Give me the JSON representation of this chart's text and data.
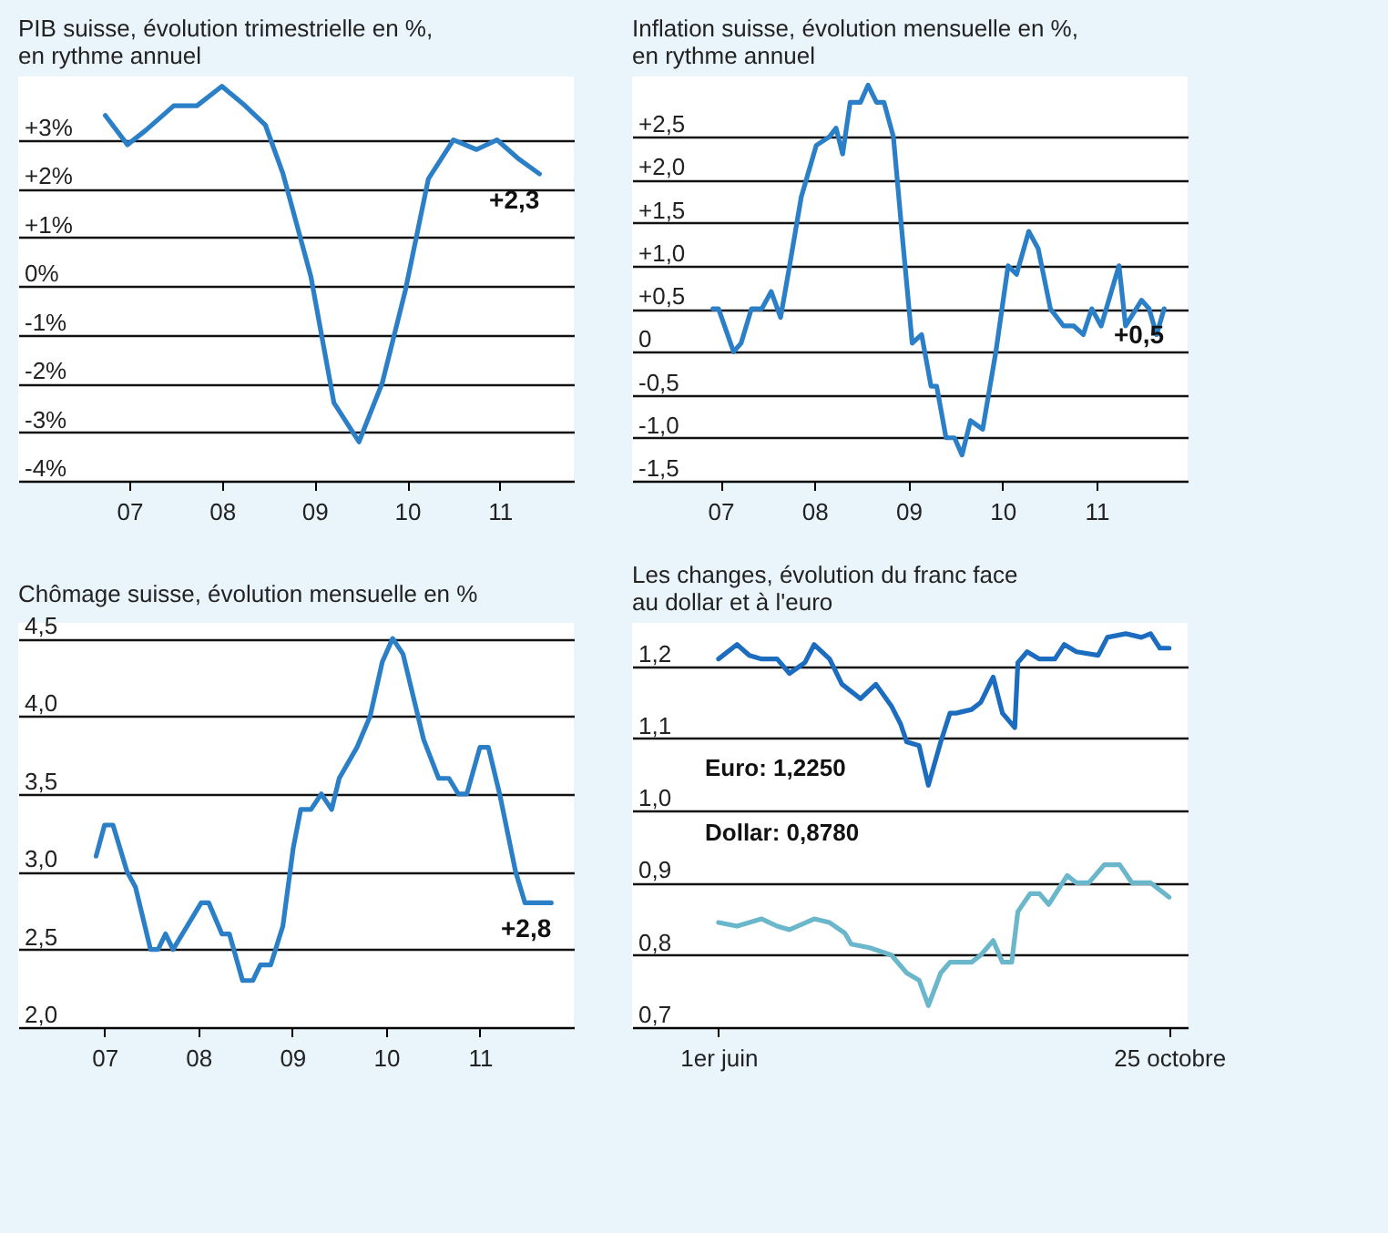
{
  "chart_data": [
    {
      "type": "line",
      "title": "PIB suisse, évolution trimestrielle en %,\nen rythme annuel",
      "grid": "y",
      "x": [
        2006.74,
        2006.98,
        2007.18,
        2007.48,
        2007.73,
        2008.0,
        2008.25,
        2008.47,
        2008.66,
        2008.96,
        2009.21,
        2009.48,
        2009.73,
        2009.98,
        2010.23,
        2010.5,
        2010.75,
        2010.97,
        2011.21,
        2011.43
      ],
      "series": [
        {
          "color": "#2a7fc6",
          "values": [
            3.5,
            2.9,
            3.2,
            3.7,
            3.7,
            4.1,
            3.7,
            3.3,
            2.3,
            0.2,
            -2.4,
            -3.2,
            -2.0,
            -0.1,
            2.2,
            3.0,
            2.8,
            3.0,
            2.6,
            2.3
          ]
        }
      ],
      "xlim": [
        2005.8,
        2011.8
      ],
      "xticks": [
        {
          "value": 2007,
          "label": "07"
        },
        {
          "value": 2008,
          "label": "08"
        },
        {
          "value": 2009,
          "label": "09"
        },
        {
          "value": 2010,
          "label": "10"
        },
        {
          "value": 2011,
          "label": "11"
        }
      ],
      "ylim": [
        -4,
        4.3
      ],
      "yticks": [
        {
          "value": 3,
          "label": "+3%"
        },
        {
          "value": 2,
          "label": "+2%"
        },
        {
          "value": 1,
          "label": "+1%"
        },
        {
          "value": 0,
          "label": "0%"
        },
        {
          "value": -1,
          "label": "-1%"
        },
        {
          "value": -2,
          "label": "-2%"
        },
        {
          "value": -3,
          "label": "-3%"
        },
        {
          "value": -4,
          "label": "-4%"
        }
      ],
      "annotations": [
        {
          "text": "+2,3",
          "x": 2011.43,
          "y": 2.3
        }
      ]
    },
    {
      "type": "line",
      "title": "Inflation suisse, évolution mensuelle en %,\nen rythme annuel",
      "grid": "y",
      "x": [
        2006.92,
        2006.98,
        2007.14,
        2007.22,
        2007.33,
        2007.44,
        2007.54,
        2007.64,
        2007.72,
        2007.86,
        2008.02,
        2008.16,
        2008.23,
        2008.3,
        2008.38,
        2008.49,
        2008.57,
        2008.66,
        2008.74,
        2008.84,
        2008.93,
        2009.04,
        2009.14,
        2009.24,
        2009.3,
        2009.4,
        2009.49,
        2009.57,
        2009.66,
        2009.79,
        2009.93,
        2010.06,
        2010.15,
        2010.28,
        2010.38,
        2010.51,
        2010.65,
        2010.76,
        2010.86,
        2010.95,
        2011.05,
        2011.24,
        2011.31,
        2011.48,
        2011.56,
        2011.64,
        2011.72
      ],
      "series": [
        {
          "color": "#2a7fc6",
          "values": [
            0.5,
            0.5,
            0.0,
            0.1,
            0.5,
            0.5,
            0.7,
            0.4,
            0.9,
            1.8,
            2.4,
            2.5,
            2.6,
            2.3,
            2.9,
            2.9,
            3.1,
            2.9,
            2.9,
            2.5,
            1.4,
            0.1,
            0.2,
            -0.4,
            -0.4,
            -1.0,
            -1.0,
            -1.2,
            -0.8,
            -0.9,
            0.0,
            1.0,
            0.9,
            1.4,
            1.2,
            0.5,
            0.3,
            0.3,
            0.2,
            0.5,
            0.3,
            1.0,
            0.3,
            0.6,
            0.5,
            0.2,
            0.5
          ]
        }
      ],
      "xlim": [
        2006.06,
        2011.97
      ],
      "xticks": [
        {
          "value": 2007,
          "label": "07"
        },
        {
          "value": 2008,
          "label": "08"
        },
        {
          "value": 2009,
          "label": "09"
        },
        {
          "value": 2010,
          "label": "10"
        },
        {
          "value": 2011,
          "label": "11"
        }
      ],
      "ylim": [
        -1.5,
        3.2
      ],
      "yticks": [
        {
          "value": 2.5,
          "label": "+2,5"
        },
        {
          "value": 2,
          "label": "+2,0"
        },
        {
          "value": 1.5,
          "label": "+1,5"
        },
        {
          "value": 1,
          "label": "+1,0"
        },
        {
          "value": 0.5,
          "label": "+0,5"
        },
        {
          "value": 0,
          "label": "0"
        },
        {
          "value": -0.5,
          "label": "-0,5"
        },
        {
          "value": -1,
          "label": "-1,0"
        },
        {
          "value": -1.5,
          "label": "-1,5"
        }
      ],
      "annotations": [
        {
          "text": "+0,5",
          "x": 2011.72,
          "y": 0.5
        }
      ]
    },
    {
      "type": "line",
      "title": "Chômage suisse, évolution mensuelle en %",
      "grid": "y",
      "x": [
        2006.91,
        2007.0,
        2007.09,
        2007.24,
        2007.33,
        2007.49,
        2007.57,
        2007.65,
        2007.73,
        2008.03,
        2008.11,
        2008.25,
        2008.33,
        2008.47,
        2008.58,
        2008.66,
        2008.77,
        2008.9,
        2009.01,
        2009.09,
        2009.2,
        2009.31,
        2009.42,
        2009.5,
        2009.69,
        2009.83,
        2009.96,
        2010.07,
        2010.18,
        2010.4,
        2010.56,
        2010.67,
        2010.77,
        2010.86,
        2011.0,
        2011.09,
        2011.21,
        2011.38,
        2011.48,
        2011.76
      ],
      "series": [
        {
          "color": "#2a7fc6",
          "values": [
            3.1,
            3.3,
            3.3,
            3.0,
            2.9,
            2.5,
            2.5,
            2.6,
            2.5,
            2.8,
            2.8,
            2.6,
            2.6,
            2.3,
            2.3,
            2.4,
            2.4,
            2.65,
            3.15,
            3.4,
            3.4,
            3.5,
            3.4,
            3.6,
            3.8,
            4.0,
            4.35,
            4.5,
            4.4,
            3.85,
            3.6,
            3.6,
            3.5,
            3.5,
            3.8,
            3.8,
            3.5,
            3.0,
            2.8,
            2.8
          ]
        }
      ],
      "xlim": [
        2006.08,
        2012.0
      ],
      "xticks": [
        {
          "value": 2007,
          "label": "07"
        },
        {
          "value": 2008,
          "label": "08"
        },
        {
          "value": 2009,
          "label": "09"
        },
        {
          "value": 2010,
          "label": "10"
        },
        {
          "value": 2011,
          "label": "11"
        }
      ],
      "ylim": [
        2.0,
        4.6
      ],
      "yticks": [
        {
          "value": 4.5,
          "label": "4,5"
        },
        {
          "value": 4,
          "label": "4,0"
        },
        {
          "value": 3.5,
          "label": "3,5"
        },
        {
          "value": 3,
          "label": "3,0"
        },
        {
          "value": 2.5,
          "label": "2,5"
        },
        {
          "value": 2,
          "label": "2,0"
        }
      ],
      "annotations": [
        {
          "text": "+2,8",
          "x": 2011.76,
          "y": 2.8
        }
      ]
    },
    {
      "type": "line",
      "title": "Les changes, évolution du franc face\nau dollar et à l'euro",
      "grid": "y",
      "series": [
        {
          "color": "#1c6cc0",
          "x": [
            "--06-01",
            "--06-07",
            "--06-11",
            "--06-15",
            "--06-20",
            "--06-24",
            "--06-29",
            "--07-02",
            "--07-07",
            "--07-11",
            "--07-17",
            "--07-22",
            "--07-27",
            "--07-30",
            "--08-01",
            "--08-05",
            "--08-08",
            "--08-12",
            "--08-15",
            "--08-17",
            "--08-22",
            "--08-25",
            "--08-29",
            "--09-01",
            "--09-05",
            "--09-06",
            "--09-09",
            "--09-13",
            "--09-18",
            "--09-21",
            "--09-25",
            "--10-02",
            "--10-05",
            "--10-11",
            "--10-16",
            "--10-19",
            "--10-22",
            "--10-25"
          ],
          "values": [
            1.21,
            1.23,
            1.215,
            1.21,
            1.21,
            1.19,
            1.205,
            1.23,
            1.21,
            1.175,
            1.155,
            1.175,
            1.145,
            1.12,
            1.095,
            1.09,
            1.035,
            1.095,
            1.135,
            1.135,
            1.14,
            1.15,
            1.185,
            1.135,
            1.115,
            1.205,
            1.22,
            1.21,
            1.21,
            1.23,
            1.22,
            1.215,
            1.24,
            1.245,
            1.24,
            1.245,
            1.225,
            1.225
          ]
        },
        {
          "color": "#6ab7cb",
          "x": [
            "--06-01",
            "--06-07",
            "--06-15",
            "--06-20",
            "--06-24",
            "--07-02",
            "--07-07",
            "--07-12",
            "--07-14",
            "--07-20",
            "--07-27",
            "--08-01",
            "--08-05",
            "--08-08",
            "--08-12",
            "--08-15",
            "--08-22",
            "--08-25",
            "--08-29",
            "--09-01",
            "--09-04",
            "--09-06",
            "--09-10",
            "--09-13",
            "--09-16",
            "--09-22",
            "--09-25",
            "--09-29",
            "--10-04",
            "--10-09",
            "--10-13",
            "--10-16",
            "--10-19",
            "--10-25"
          ],
          "values": [
            0.845,
            0.84,
            0.85,
            0.84,
            0.835,
            0.85,
            0.845,
            0.83,
            0.815,
            0.81,
            0.8,
            0.775,
            0.765,
            0.73,
            0.775,
            0.79,
            0.79,
            0.8,
            0.82,
            0.79,
            0.79,
            0.86,
            0.885,
            0.885,
            0.87,
            0.91,
            0.9,
            0.9,
            0.925,
            0.925,
            0.9,
            0.9,
            0.9,
            0.88
          ]
        }
      ],
      "xlim": [
        "--05-04",
        "--10-31"
      ],
      "xticks": [
        {
          "value": "--06-01",
          "label": "1er juin"
        },
        {
          "value": "--10-25",
          "label": "25 octobre"
        }
      ],
      "ylim": [
        0.7,
        1.26
      ],
      "yticks": [
        {
          "value": 1.2,
          "label": "1,2"
        },
        {
          "value": 1.1,
          "label": "1,1"
        },
        {
          "value": 1.0,
          "label": "1,0"
        },
        {
          "value": 0.9,
          "label": "0,9"
        },
        {
          "value": 0.8,
          "label": "0,8"
        },
        {
          "value": 0.7,
          "label": "0,7"
        }
      ],
      "annotations": [
        "Euro: 1,2250",
        "Dollar: 0,8780"
      ]
    }
  ]
}
